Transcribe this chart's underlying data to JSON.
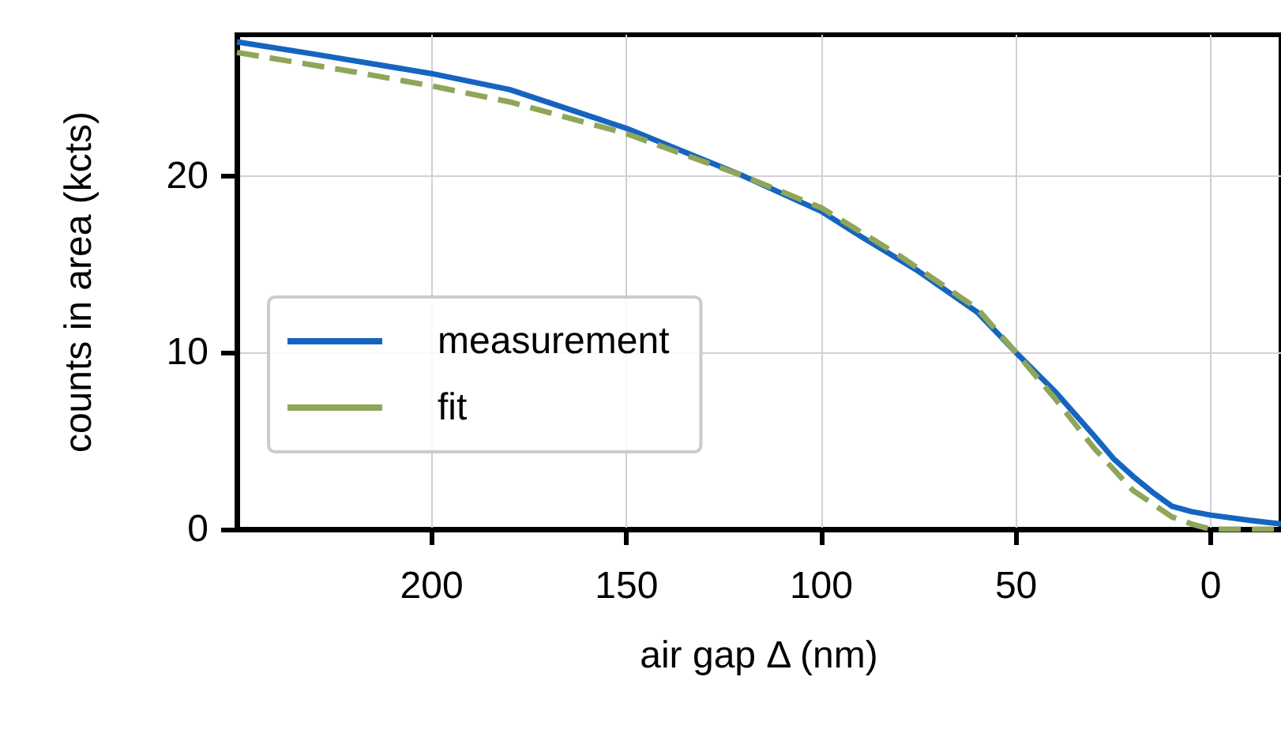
{
  "chart_data": {
    "type": "line",
    "xlabel": "air gap Δ (nm)",
    "ylabel": "counts in area (kcts)",
    "xlim": [
      250,
      -18
    ],
    "ylim": [
      0,
      28
    ],
    "xticks": [
      200,
      150,
      100,
      50,
      0
    ],
    "yticks": [
      0,
      10,
      20
    ],
    "grid": true,
    "legend": "lower left",
    "line_style": "solid",
    "marker": "none",
    "series": [
      {
        "name": "measurement",
        "color": "#1565c0",
        "x": [
          250,
          230,
          200,
          180,
          150,
          120,
          100,
          90,
          75,
          60,
          50,
          40,
          30,
          25,
          20,
          15,
          10,
          5,
          0,
          -10,
          -18
        ],
        "values": [
          27.6,
          26.9,
          25.8,
          24.9,
          22.7,
          20.0,
          18.0,
          16.6,
          14.6,
          12.3,
          10.0,
          7.8,
          5.3,
          4.0,
          3.0,
          2.1,
          1.3,
          1.0,
          0.8,
          0.5,
          0.3
        ]
      },
      {
        "name": "fit",
        "color": "#8fa65a",
        "line_style": "dashed",
        "x": [
          250,
          220,
          200,
          180,
          150,
          120,
          100,
          80,
          60,
          50,
          40,
          30,
          20,
          10,
          5,
          0,
          -18
        ],
        "values": [
          27.0,
          25.9,
          25.1,
          24.2,
          22.4,
          20.0,
          18.2,
          15.5,
          12.5,
          10.0,
          7.4,
          4.6,
          2.2,
          0.7,
          0.3,
          0.0,
          0.0
        ]
      }
    ]
  }
}
